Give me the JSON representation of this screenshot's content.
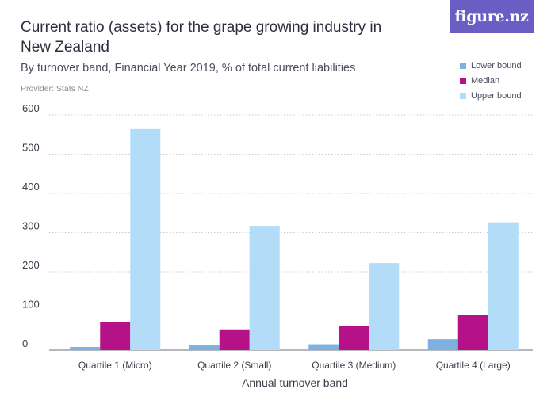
{
  "branding": {
    "logo_text": "figure.nz",
    "logo_color": "#6a5dc4"
  },
  "chart_data": {
    "type": "bar",
    "title": "Current ratio (assets) for the grape growing industry in New Zealand",
    "subtitle": "By turnover band, Financial Year 2019, % of total current liabilities",
    "provider": "Provider: Stats NZ",
    "xlabel": "Annual turnover band",
    "ylabel": "",
    "ylim": [
      0,
      600
    ],
    "yticks": [
      0,
      100,
      200,
      300,
      400,
      500,
      600
    ],
    "categories": [
      "Quartile 1 (Micro)",
      "Quartile 2 (Small)",
      "Quartile 3 (Medium)",
      "Quartile 4 (Large)"
    ],
    "series": [
      {
        "name": "Lower bound",
        "color": "#7fb1e0",
        "values": [
          8,
          13,
          15,
          28
        ]
      },
      {
        "name": "Median",
        "color": "#b5128a",
        "values": [
          71,
          53,
          62,
          89
        ]
      },
      {
        "name": "Upper bound",
        "color": "#b3dcf8",
        "values": [
          564,
          317,
          222,
          326
        ]
      }
    ],
    "legend_position": "top-right",
    "grid": true
  }
}
